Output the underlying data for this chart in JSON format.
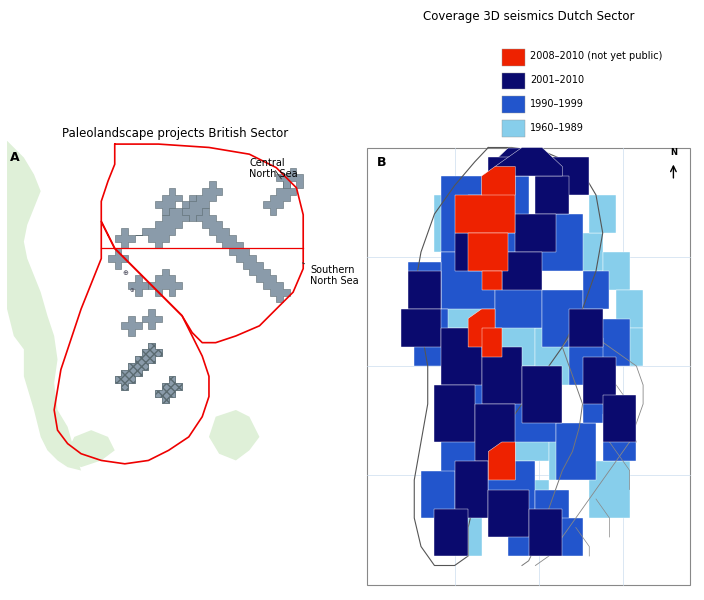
{
  "title_left": "Paleolandscape projects British Sector",
  "title_right": "Coverage 3D seismics Dutch Sector",
  "label_A": "A",
  "label_B": "B",
  "label_central": "Central\nNorth Sea",
  "label_southern": "Southern\nNorth Sea",
  "legend_items": [
    {
      "label": "2008–2010 (not yet public)",
      "color": "#EE2200"
    },
    {
      "label": "2001–2010",
      "color": "#0A0A6E"
    },
    {
      "label": "1990–1999",
      "color": "#2255CC"
    },
    {
      "label": "1960–1989",
      "color": "#87CEEB"
    }
  ],
  "background_color": "#FFFFFF",
  "land_color": "#DFF0D8",
  "grey_fill": "#8A9BAA",
  "grey_edge": "#5A6A70",
  "red_line_color": "#EE0000",
  "panel_edge": "#888888",
  "grid_color": "#CCDDEE"
}
